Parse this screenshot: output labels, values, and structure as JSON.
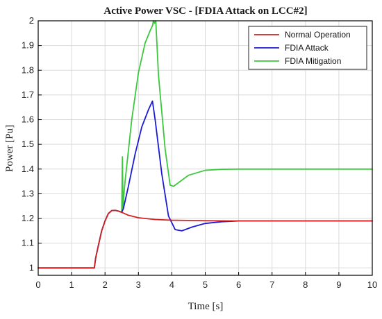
{
  "chart_data": {
    "type": "line",
    "title": "Active Power VSC - [FDIA Attack on LCC#2]",
    "xlabel": "Time [s]",
    "ylabel": "Power [Pu]",
    "xlim": [
      0,
      10
    ],
    "ylim": [
      0.97,
      2.0
    ],
    "xticks": [
      "0",
      "1",
      "2",
      "3",
      "4",
      "5",
      "6",
      "7",
      "8",
      "9",
      "10"
    ],
    "yticks": [
      "1",
      "1.1",
      "1.2",
      "1.3",
      "1.4",
      "1.5",
      "1.6",
      "1.7",
      "1.8",
      "1.9",
      "2"
    ],
    "grid": true,
    "legend_position": "top-right",
    "series": [
      {
        "name": "Normal Operation",
        "color": "#d42020",
        "x": [
          0,
          1.68,
          1.72,
          1.8,
          1.9,
          2.0,
          2.1,
          2.2,
          2.3,
          2.4,
          2.5,
          2.7,
          3.0,
          3.5,
          4.0,
          5.0,
          6.0,
          8.0,
          10.0
        ],
        "y": [
          1.0,
          1.0,
          1.04,
          1.09,
          1.15,
          1.19,
          1.22,
          1.232,
          1.233,
          1.23,
          1.225,
          1.213,
          1.203,
          1.196,
          1.193,
          1.191,
          1.19,
          1.19,
          1.19
        ]
      },
      {
        "name": "FDIA Attack",
        "color": "#1a1ad4",
        "x": [
          0,
          1.68,
          1.72,
          1.8,
          1.9,
          2.0,
          2.1,
          2.2,
          2.3,
          2.4,
          2.5,
          2.55,
          2.7,
          2.9,
          3.1,
          3.3,
          3.42,
          3.5,
          3.7,
          3.9,
          4.1,
          4.3,
          4.6,
          5.0,
          5.5,
          6.0,
          8.0,
          10.0
        ],
        "y": [
          1.0,
          1.0,
          1.04,
          1.09,
          1.15,
          1.19,
          1.22,
          1.232,
          1.233,
          1.23,
          1.225,
          1.24,
          1.33,
          1.46,
          1.57,
          1.64,
          1.675,
          1.6,
          1.38,
          1.21,
          1.155,
          1.15,
          1.165,
          1.18,
          1.187,
          1.19,
          1.19,
          1.19
        ]
      },
      {
        "name": "FDIA Mitigation",
        "color": "#3cc83c",
        "x": [
          0,
          1.68,
          1.72,
          1.8,
          1.9,
          2.0,
          2.1,
          2.2,
          2.3,
          2.4,
          2.5,
          2.52,
          2.54,
          2.56,
          2.6,
          2.8,
          3.0,
          3.2,
          3.35,
          3.42,
          3.45,
          3.48,
          3.52,
          3.6,
          3.8,
          3.95,
          4.05,
          4.2,
          4.5,
          5.0,
          5.5,
          6.0,
          8.0,
          10.0
        ],
        "y": [
          1.0,
          1.0,
          1.04,
          1.09,
          1.15,
          1.19,
          1.22,
          1.232,
          1.233,
          1.23,
          1.225,
          1.45,
          1.24,
          1.29,
          1.35,
          1.6,
          1.79,
          1.91,
          1.96,
          1.98,
          2.0,
          1.99,
          2.0,
          1.78,
          1.48,
          1.335,
          1.33,
          1.345,
          1.375,
          1.395,
          1.399,
          1.4,
          1.4,
          1.4
        ]
      }
    ]
  }
}
